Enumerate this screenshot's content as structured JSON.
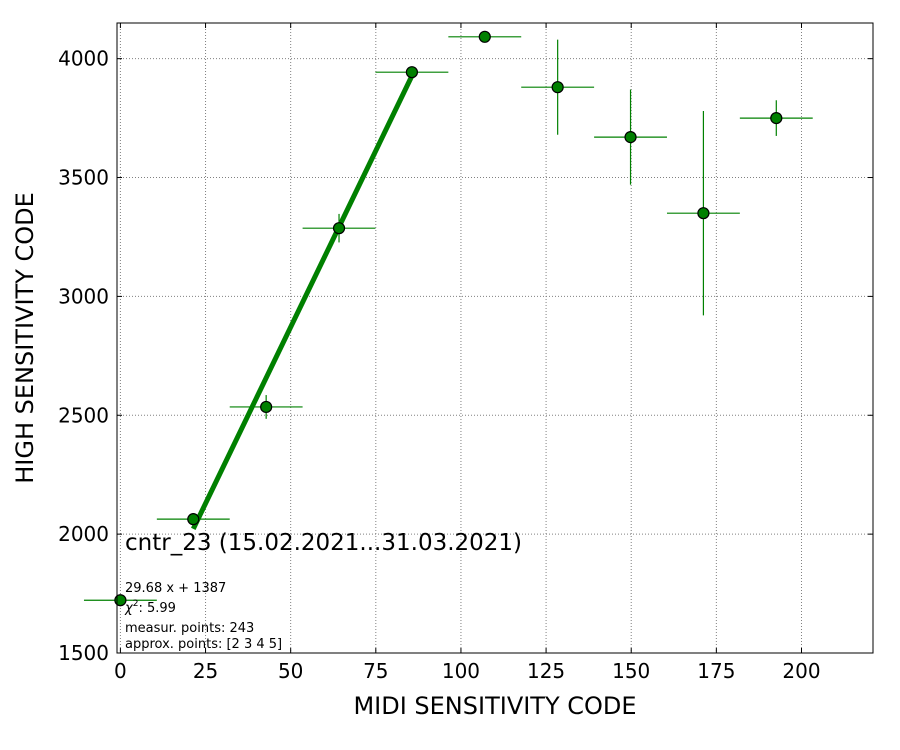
{
  "chart_data": {
    "type": "scatter",
    "xlabel": "MIDI SENSITIVITY CODE",
    "ylabel": "HIGH SENSITIVITY CODE",
    "xlim": [
      -1,
      221
    ],
    "ylim": [
      1500,
      4150
    ],
    "xticks": [
      0,
      25,
      50,
      75,
      100,
      125,
      150,
      175,
      200
    ],
    "yticks": [
      1500,
      2000,
      2500,
      3000,
      3500,
      4000
    ],
    "grid": true,
    "points": [
      {
        "x": 0.0,
        "y": 1722,
        "xerr": 10.7,
        "yerr": 0
      },
      {
        "x": 21.4,
        "y": 2063,
        "xerr": 10.7,
        "yerr": 0
      },
      {
        "x": 42.8,
        "y": 2535,
        "xerr": 10.7,
        "yerr": 50
      },
      {
        "x": 64.2,
        "y": 3287,
        "xerr": 10.7,
        "yerr": 60
      },
      {
        "x": 85.6,
        "y": 3943,
        "xerr": 10.7,
        "yerr": 0
      },
      {
        "x": 107.0,
        "y": 4092,
        "xerr": 10.7,
        "yerr": 0
      },
      {
        "x": 128.4,
        "y": 3880,
        "xerr": 10.7,
        "yerr": 200
      },
      {
        "x": 149.8,
        "y": 3670,
        "xerr": 10.7,
        "yerr": 200
      },
      {
        "x": 171.2,
        "y": 3350,
        "xerr": 10.7,
        "yerr": 430
      },
      {
        "x": 192.6,
        "y": 3750,
        "xerr": 10.7,
        "yerr": 75
      }
    ],
    "fit": {
      "slope": 29.68,
      "intercept": 1387,
      "x_range": [
        21.4,
        85.6
      ]
    },
    "annotation": {
      "title": "cntr_23 (15.02.2021...31.03.2021)",
      "fit_text": "29.68 x + 1387",
      "chi2_text": ": 5.99",
      "measur_text": "measur. points: 243",
      "approx_text": "approx. points: [2 3 4 5]"
    },
    "colors": {
      "marker_fill": "#008000",
      "marker_edge": "#000000",
      "errorbar": "#008000",
      "fit_line": "#008000"
    }
  }
}
